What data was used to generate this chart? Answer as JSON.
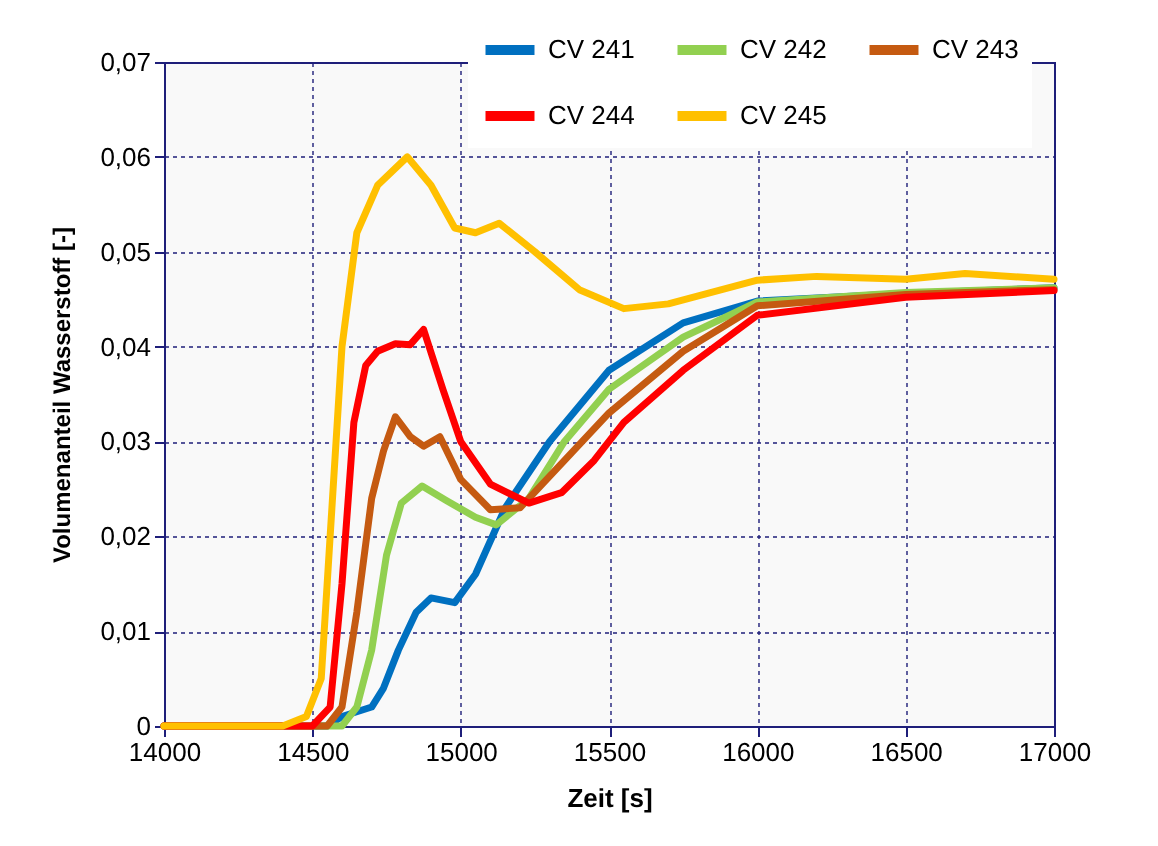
{
  "chart_data": {
    "type": "line",
    "xlabel": "Zeit [s]",
    "ylabel": "Volumenanteil Wasserstoff [-]",
    "xlim": [
      14000,
      17000
    ],
    "xticks": [
      14000,
      14500,
      15000,
      15500,
      16000,
      16500,
      17000
    ],
    "ylim": [
      0,
      0.07
    ],
    "yticks": [
      0,
      {
        "value": 0.01,
        "label": "0,01"
      },
      {
        "value": 0.02,
        "label": "0,02"
      },
      {
        "value": 0.03,
        "label": "0,03"
      },
      {
        "value": 0.04,
        "label": "0,04"
      },
      {
        "value": 0.05,
        "label": "0,05"
      },
      {
        "value": 0.06,
        "label": "0,06"
      },
      {
        "value": 0.07,
        "label": "0,07"
      }
    ],
    "grid": true,
    "legend": "top right",
    "marker": "none",
    "line_style": "solid",
    "series": [
      {
        "name": "CV 241",
        "color": "#0070c0",
        "x": [
          14000,
          14550,
          14600,
          14700,
          14740,
          14790,
          14850,
          14900,
          14980,
          15050,
          15150,
          15300,
          15500,
          15750,
          16000,
          16500,
          17000
        ],
        "values": [
          0,
          0,
          0.001,
          0.002,
          0.004,
          0.008,
          0.012,
          0.0135,
          0.013,
          0.016,
          0.023,
          0.03,
          0.0375,
          0.0425,
          0.0448,
          0.0456,
          0.0462
        ]
      },
      {
        "name": "CV 242",
        "color": "#92d050",
        "x": [
          14000,
          14600,
          14650,
          14700,
          14750,
          14800,
          14870,
          14950,
          15050,
          15120,
          15230,
          15350,
          15500,
          15750,
          16000,
          16500,
          17000
        ],
        "values": [
          0,
          0,
          0.002,
          0.008,
          0.018,
          0.0235,
          0.0253,
          0.0238,
          0.022,
          0.0212,
          0.024,
          0.03,
          0.0355,
          0.041,
          0.0447,
          0.0457,
          0.0462
        ]
      },
      {
        "name": "CV 243",
        "color": "#c55a11",
        "x": [
          14000,
          14550,
          14600,
          14650,
          14700,
          14740,
          14780,
          14830,
          14875,
          14930,
          15000,
          15100,
          15200,
          15350,
          15500,
          15750,
          16000,
          16500,
          17000
        ],
        "values": [
          0,
          0,
          0.002,
          0.012,
          0.024,
          0.029,
          0.0326,
          0.0305,
          0.0295,
          0.0305,
          0.026,
          0.0228,
          0.023,
          0.028,
          0.033,
          0.0395,
          0.0443,
          0.0455,
          0.046
        ]
      },
      {
        "name": "CV 244",
        "color": "#ff0000",
        "x": [
          14000,
          14500,
          14560,
          14600,
          14640,
          14680,
          14720,
          14780,
          14830,
          14875,
          14940,
          15000,
          15100,
          15230,
          15340,
          15450,
          15550,
          15750,
          16000,
          16500,
          17000
        ],
        "values": [
          0,
          0,
          0.002,
          0.015,
          0.032,
          0.038,
          0.0395,
          0.0403,
          0.0402,
          0.0418,
          0.0355,
          0.03,
          0.0255,
          0.0235,
          0.0246,
          0.028,
          0.032,
          0.0375,
          0.0433,
          0.0452,
          0.0459
        ]
      },
      {
        "name": "CV 245",
        "color": "#ffc000",
        "x": [
          14000,
          14400,
          14480,
          14530,
          14560,
          14600,
          14650,
          14720,
          14820,
          14900,
          14980,
          15050,
          15130,
          15250,
          15400,
          15550,
          15700,
          16000,
          16200,
          16500,
          16700,
          17000
        ],
        "values": [
          0,
          0,
          0.001,
          0.005,
          0.02,
          0.04,
          0.052,
          0.057,
          0.06,
          0.057,
          0.0525,
          0.052,
          0.053,
          0.05,
          0.046,
          0.044,
          0.0445,
          0.047,
          0.0474,
          0.0471,
          0.0477,
          0.0471
        ]
      }
    ]
  }
}
